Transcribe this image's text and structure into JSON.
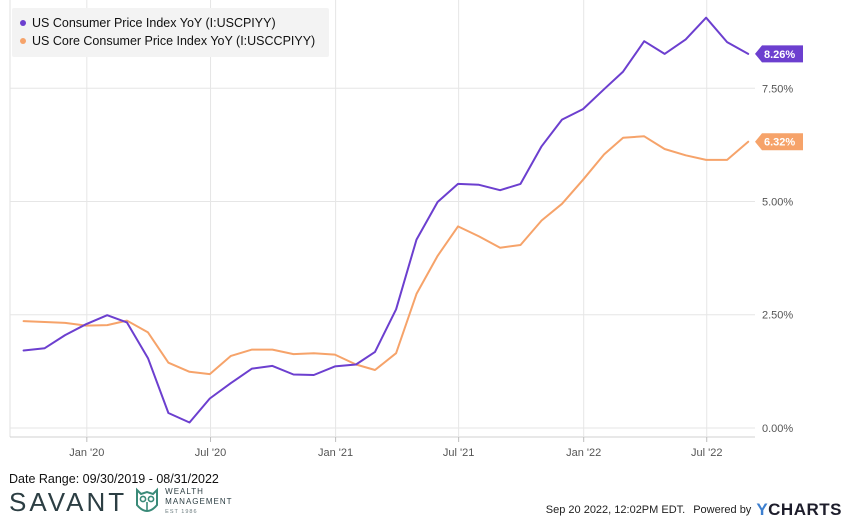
{
  "colors": {
    "cpi": "#6c3fcf",
    "core": "#f6a36a",
    "grid": "#e6e6e6",
    "axis_text": "#555555"
  },
  "legend": {
    "items": [
      {
        "label": "US Consumer Price Index YoY (I:USCPIYY)",
        "color": "#6c3fcf"
      },
      {
        "label": "US Core Consumer Price Index YoY (I:USCCPIYY)",
        "color": "#f6a36a"
      }
    ]
  },
  "footer": {
    "date_range": "Date Range: 09/30/2019 - 08/31/2022",
    "timestamp": "Sep 20 2022, 12:02PM EDT.",
    "powered_by": "Powered by",
    "brand_y": "Y",
    "brand_rest": "CHARTS"
  },
  "logo": {
    "wordmark": "SAVANT",
    "line1": "WEALTH",
    "line2": "MANAGEMENT",
    "line3": "EST 1986"
  },
  "chart_data": {
    "type": "line",
    "x": [
      "2019-09-30",
      "2019-10-31",
      "2019-11-30",
      "2019-12-31",
      "2020-01-31",
      "2020-02-29",
      "2020-03-31",
      "2020-04-30",
      "2020-05-31",
      "2020-06-30",
      "2020-07-31",
      "2020-08-31",
      "2020-09-30",
      "2020-10-31",
      "2020-11-30",
      "2020-12-31",
      "2021-01-31",
      "2021-02-28",
      "2021-03-31",
      "2021-04-30",
      "2021-05-31",
      "2021-06-30",
      "2021-07-31",
      "2021-08-31",
      "2021-09-30",
      "2021-10-31",
      "2021-11-30",
      "2021-12-31",
      "2022-01-31",
      "2022-02-28",
      "2022-03-31",
      "2022-04-30",
      "2022-05-31",
      "2022-06-30",
      "2022-07-31",
      "2022-08-31"
    ],
    "series": [
      {
        "name": "US Consumer Price Index YoY (I:USCPIYY)",
        "color": "#6c3fcf",
        "last_label": "8.26%",
        "values": [
          1.71,
          1.76,
          2.05,
          2.29,
          2.49,
          2.33,
          1.54,
          0.33,
          0.12,
          0.65,
          0.99,
          1.31,
          1.37,
          1.18,
          1.17,
          1.36,
          1.4,
          1.68,
          2.62,
          4.16,
          4.99,
          5.39,
          5.37,
          5.25,
          5.39,
          6.22,
          6.81,
          7.04,
          7.48,
          7.87,
          8.54,
          8.26,
          8.58,
          9.06,
          8.52,
          8.26
        ]
      },
      {
        "name": "US Core Consumer Price Index YoY (I:USCCPIYY)",
        "color": "#f6a36a",
        "last_label": "6.32%",
        "values": [
          2.36,
          2.34,
          2.32,
          2.26,
          2.27,
          2.37,
          2.11,
          1.44,
          1.24,
          1.19,
          1.59,
          1.73,
          1.73,
          1.63,
          1.65,
          1.62,
          1.4,
          1.28,
          1.65,
          2.96,
          3.8,
          4.45,
          4.23,
          3.98,
          4.04,
          4.58,
          4.95,
          5.48,
          6.04,
          6.41,
          6.44,
          6.16,
          6.02,
          5.92,
          5.92,
          6.32
        ]
      }
    ],
    "x_ticks": [
      {
        "date": "2020-01-01",
        "label": "Jan '20"
      },
      {
        "date": "2020-07-01",
        "label": "Jul '20"
      },
      {
        "date": "2021-01-01",
        "label": "Jan '21"
      },
      {
        "date": "2021-07-01",
        "label": "Jul '21"
      },
      {
        "date": "2022-01-01",
        "label": "Jan '22"
      },
      {
        "date": "2022-07-01",
        "label": "Jul '22"
      }
    ],
    "y_ticks": [
      {
        "value": 0,
        "label": "0.00%"
      },
      {
        "value": 2.5,
        "label": "2.50%"
      },
      {
        "value": 5,
        "label": "5.00%"
      },
      {
        "value": 7.5,
        "label": "7.50%"
      }
    ],
    "xlim": [
      "2019-09-10",
      "2022-09-10"
    ],
    "ylim": [
      -0.2,
      9.45
    ],
    "grid": true,
    "legend_position": "top-left"
  }
}
